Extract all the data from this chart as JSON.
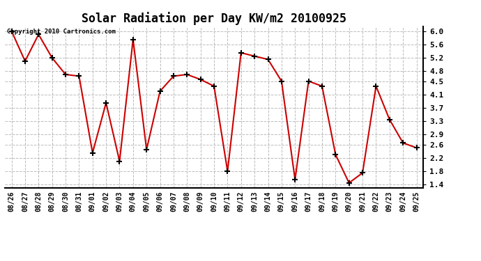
{
  "title": "Solar Radiation per Day KW/m2 20100925",
  "copyright_text": "Copyright 2010 Cartronics.com",
  "x_labels": [
    "08/26",
    "08/27",
    "08/28",
    "08/29",
    "08/30",
    "08/31",
    "09/01",
    "09/02",
    "09/03",
    "09/04",
    "09/05",
    "09/06",
    "09/07",
    "09/08",
    "09/09",
    "09/10",
    "09/11",
    "09/12",
    "09/13",
    "09/14",
    "09/15",
    "09/16",
    "09/17",
    "09/18",
    "09/19",
    "09/20",
    "09/21",
    "09/22",
    "09/23",
    "09/24",
    "09/25"
  ],
  "y_values": [
    6.0,
    5.1,
    5.9,
    5.2,
    4.7,
    4.65,
    2.35,
    3.85,
    2.1,
    5.75,
    2.45,
    4.2,
    4.65,
    4.7,
    4.55,
    4.35,
    1.8,
    5.35,
    5.25,
    5.15,
    4.5,
    1.55,
    4.5,
    4.35,
    2.3,
    1.45,
    1.75,
    4.35,
    3.35,
    2.65,
    2.5
  ],
  "line_color": "#cc0000",
  "marker_color": "#000000",
  "background_color": "#ffffff",
  "grid_color": "#bbbbbb",
  "ylim": [
    1.3,
    6.15
  ],
  "ytick_vals": [
    1.4,
    1.8,
    2.2,
    2.6,
    2.9,
    3.3,
    3.7,
    4.1,
    4.5,
    4.8,
    5.2,
    5.6,
    6.0
  ],
  "ytick_labels": [
    "1.4",
    "1.8",
    "2.2",
    "2.6",
    "2.9",
    "3.3",
    "3.7",
    "4.1",
    "4.5",
    "4.8",
    "5.2",
    "5.6",
    "6.0"
  ]
}
